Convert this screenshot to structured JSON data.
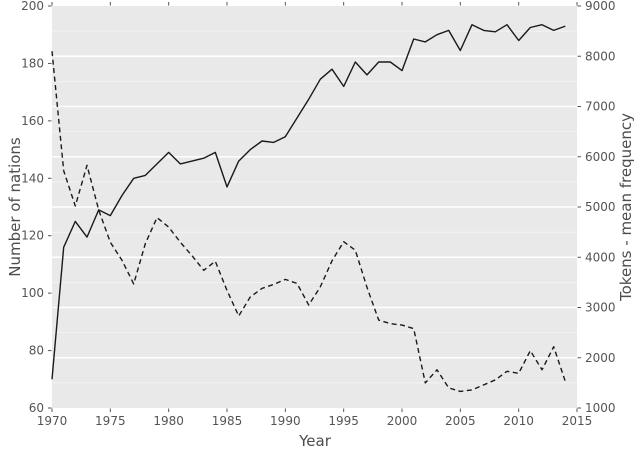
{
  "figure": {
    "background": "#ffffff",
    "plot_background": "#e9e9e9",
    "grid_color": "#ffffff",
    "line_color": "#1a1a1a",
    "tick_color": "#555555",
    "tick_text_color": "#555555",
    "axis_title_color": "#4d4d4d"
  },
  "chart_data": {
    "type": "line",
    "title": "",
    "xlabel": "Year",
    "ylabel_left": "Number of nations",
    "ylabel_right": "Tokens - mean frequency",
    "xlim": [
      1970,
      2015
    ],
    "ylim_left": [
      60,
      200
    ],
    "ylim_right": [
      1000,
      9000
    ],
    "x_ticks": [
      1970,
      1975,
      1980,
      1985,
      1990,
      1995,
      2000,
      2005,
      2010,
      2015
    ],
    "y_ticks_left": [
      60,
      80,
      100,
      120,
      140,
      160,
      180,
      200
    ],
    "y_ticks_right": [
      1000,
      2000,
      3000,
      4000,
      5000,
      6000,
      7000,
      8000,
      9000
    ],
    "grid": {
      "orientation": "horizontal",
      "major_step_right_axis": 1000,
      "minor_step_right_axis": 500,
      "vertical_gridlines": false
    },
    "legend": "none",
    "x": [
      1970,
      1971,
      1972,
      1973,
      1974,
      1975,
      1976,
      1977,
      1978,
      1979,
      1980,
      1981,
      1982,
      1983,
      1984,
      1985,
      1986,
      1987,
      1988,
      1989,
      1990,
      1991,
      1992,
      1993,
      1994,
      1995,
      1996,
      1997,
      1998,
      1999,
      2000,
      2001,
      2002,
      2003,
      2004,
      2005,
      2006,
      2007,
      2008,
      2009,
      2010,
      2011,
      2012,
      2013,
      2014
    ],
    "series": [
      {
        "name": "Number of nations",
        "axis": "left",
        "line_style": "solid",
        "values": [
          70,
          116,
          125,
          119.5,
          129,
          127,
          134,
          140,
          141,
          145,
          149,
          145,
          146,
          147,
          149,
          137,
          146,
          150,
          153,
          152.5,
          154.5,
          161,
          167.5,
          174.5,
          178,
          172,
          180.5,
          176,
          180.5,
          180.5,
          177.5,
          188.5,
          187.5,
          190,
          191.5,
          184.5,
          193.5,
          191.5,
          191,
          193.5,
          188,
          192.5,
          193.5,
          191.5,
          193
        ]
      },
      {
        "name": "Tokens - mean frequency",
        "axis": "right",
        "line_style": "dashed",
        "values": [
          8100,
          5720,
          5020,
          5830,
          4940,
          4300,
          3940,
          3470,
          4270,
          4790,
          4600,
          4300,
          4030,
          3740,
          3920,
          3340,
          2830,
          3210,
          3380,
          3460,
          3560,
          3480,
          3050,
          3410,
          3930,
          4310,
          4140,
          3400,
          2750,
          2680,
          2650,
          2580,
          1500,
          1760,
          1400,
          1330,
          1360,
          1460,
          1560,
          1730,
          1690,
          2140,
          1760,
          2220,
          1530
        ]
      }
    ]
  }
}
